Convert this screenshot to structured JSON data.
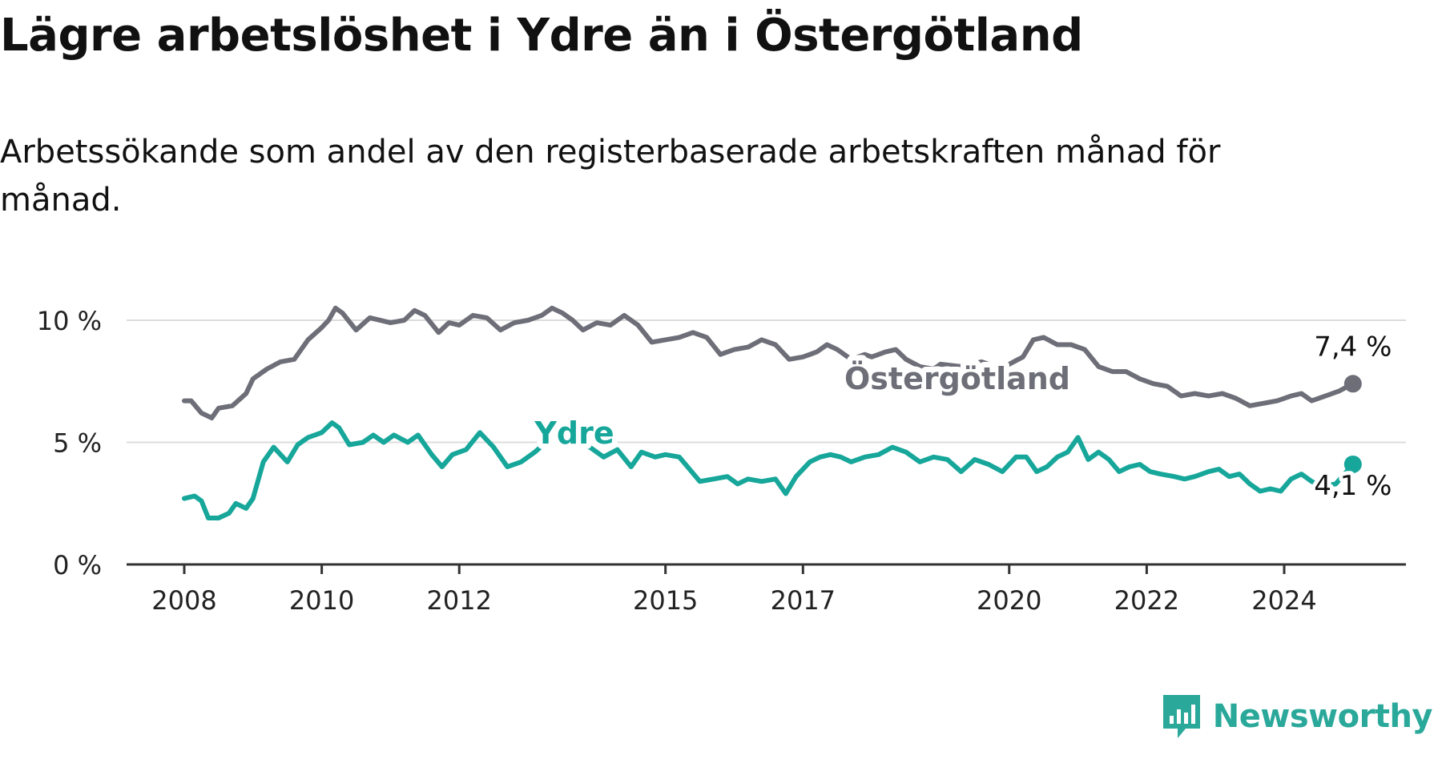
{
  "title": "Lägre arbetslöshet i Ydre än i Östergötland",
  "subtitle": "Arbetssökande som andel av den registerbaserade arbetskraften månad för månad.",
  "brand": {
    "name": "Newsworthy",
    "color": "#2aa89a"
  },
  "chart_data": {
    "type": "line",
    "x_start": "2008-01",
    "x_end": "2024-12",
    "ylim": [
      0,
      10
    ],
    "yticks": [
      {
        "value": 0,
        "label": "0 %"
      },
      {
        "value": 5,
        "label": "5 %"
      },
      {
        "value": 10,
        "label": "10 %"
      }
    ],
    "xticks": [
      {
        "value": 2008,
        "label": "2008"
      },
      {
        "value": 2010,
        "label": "2010"
      },
      {
        "value": 2012,
        "label": "2012"
      },
      {
        "value": 2015,
        "label": "2015"
      },
      {
        "value": 2017,
        "label": "2017"
      },
      {
        "value": 2020,
        "label": "2020"
      },
      {
        "value": 2022,
        "label": "2022"
      },
      {
        "value": 2024,
        "label": "2024"
      }
    ],
    "grid": true,
    "series": [
      {
        "name": "Östergötland",
        "color": "#6e6e78",
        "end_label": "7,4 %",
        "anchors": [
          [
            2008.0,
            6.7
          ],
          [
            2008.1,
            6.7
          ],
          [
            2008.25,
            6.2
          ],
          [
            2008.4,
            6.0
          ],
          [
            2008.5,
            6.4
          ],
          [
            2008.7,
            6.5
          ],
          [
            2008.9,
            7.0
          ],
          [
            2009.0,
            7.6
          ],
          [
            2009.2,
            8.0
          ],
          [
            2009.4,
            8.3
          ],
          [
            2009.6,
            8.4
          ],
          [
            2009.8,
            9.2
          ],
          [
            2010.0,
            9.7
          ],
          [
            2010.1,
            10.0
          ],
          [
            2010.2,
            10.5
          ],
          [
            2010.3,
            10.3
          ],
          [
            2010.5,
            9.6
          ],
          [
            2010.7,
            10.1
          ],
          [
            2011.0,
            9.9
          ],
          [
            2011.2,
            10.0
          ],
          [
            2011.35,
            10.4
          ],
          [
            2011.5,
            10.2
          ],
          [
            2011.7,
            9.5
          ],
          [
            2011.85,
            9.9
          ],
          [
            2012.0,
            9.8
          ],
          [
            2012.2,
            10.2
          ],
          [
            2012.4,
            10.1
          ],
          [
            2012.6,
            9.6
          ],
          [
            2012.8,
            9.9
          ],
          [
            2013.0,
            10.0
          ],
          [
            2013.2,
            10.2
          ],
          [
            2013.35,
            10.5
          ],
          [
            2013.5,
            10.3
          ],
          [
            2013.65,
            10.0
          ],
          [
            2013.8,
            9.6
          ],
          [
            2014.0,
            9.9
          ],
          [
            2014.2,
            9.8
          ],
          [
            2014.4,
            10.2
          ],
          [
            2014.6,
            9.8
          ],
          [
            2014.8,
            9.1
          ],
          [
            2015.0,
            9.2
          ],
          [
            2015.2,
            9.3
          ],
          [
            2015.4,
            9.5
          ],
          [
            2015.6,
            9.3
          ],
          [
            2015.8,
            8.6
          ],
          [
            2016.0,
            8.8
          ],
          [
            2016.2,
            8.9
          ],
          [
            2016.4,
            9.2
          ],
          [
            2016.6,
            9.0
          ],
          [
            2016.8,
            8.4
          ],
          [
            2017.0,
            8.5
          ],
          [
            2017.2,
            8.7
          ],
          [
            2017.35,
            9.0
          ],
          [
            2017.5,
            8.8
          ],
          [
            2017.7,
            8.4
          ],
          [
            2017.9,
            8.6
          ],
          [
            2018.0,
            8.5
          ],
          [
            2018.2,
            8.7
          ],
          [
            2018.35,
            8.8
          ],
          [
            2018.5,
            8.4
          ],
          [
            2018.7,
            8.1
          ],
          [
            2018.9,
            8.0
          ],
          [
            2019.0,
            8.2
          ],
          [
            2019.3,
            8.1
          ],
          [
            2019.6,
            8.3
          ],
          [
            2019.9,
            8.0
          ],
          [
            2020.0,
            8.2
          ],
          [
            2020.2,
            8.5
          ],
          [
            2020.35,
            9.2
          ],
          [
            2020.5,
            9.3
          ],
          [
            2020.7,
            9.0
          ],
          [
            2020.9,
            9.0
          ],
          [
            2021.1,
            8.8
          ],
          [
            2021.3,
            8.1
          ],
          [
            2021.5,
            7.9
          ],
          [
            2021.7,
            7.9
          ],
          [
            2021.9,
            7.6
          ],
          [
            2022.1,
            7.4
          ],
          [
            2022.3,
            7.3
          ],
          [
            2022.5,
            6.9
          ],
          [
            2022.7,
            7.0
          ],
          [
            2022.9,
            6.9
          ],
          [
            2023.1,
            7.0
          ],
          [
            2023.3,
            6.8
          ],
          [
            2023.5,
            6.5
          ],
          [
            2023.7,
            6.6
          ],
          [
            2023.9,
            6.7
          ],
          [
            2024.1,
            6.9
          ],
          [
            2024.25,
            7.0
          ],
          [
            2024.4,
            6.7
          ],
          [
            2024.6,
            6.9
          ],
          [
            2024.8,
            7.1
          ],
          [
            2025.0,
            7.4
          ]
        ]
      },
      {
        "name": "Ydre",
        "color": "#16a69a",
        "end_label": "4,1 %",
        "anchors": [
          [
            2008.0,
            2.7
          ],
          [
            2008.15,
            2.8
          ],
          [
            2008.25,
            2.6
          ],
          [
            2008.35,
            1.9
          ],
          [
            2008.5,
            1.9
          ],
          [
            2008.65,
            2.1
          ],
          [
            2008.75,
            2.5
          ],
          [
            2008.9,
            2.3
          ],
          [
            2009.0,
            2.7
          ],
          [
            2009.15,
            4.2
          ],
          [
            2009.3,
            4.8
          ],
          [
            2009.5,
            4.2
          ],
          [
            2009.65,
            4.9
          ],
          [
            2009.8,
            5.2
          ],
          [
            2010.0,
            5.4
          ],
          [
            2010.15,
            5.8
          ],
          [
            2010.25,
            5.6
          ],
          [
            2010.4,
            4.9
          ],
          [
            2010.6,
            5.0
          ],
          [
            2010.75,
            5.3
          ],
          [
            2010.9,
            5.0
          ],
          [
            2011.05,
            5.3
          ],
          [
            2011.25,
            5.0
          ],
          [
            2011.4,
            5.3
          ],
          [
            2011.6,
            4.5
          ],
          [
            2011.75,
            4.0
          ],
          [
            2011.9,
            4.5
          ],
          [
            2012.1,
            4.7
          ],
          [
            2012.3,
            5.4
          ],
          [
            2012.5,
            4.8
          ],
          [
            2012.7,
            4.0
          ],
          [
            2012.9,
            4.2
          ],
          [
            2013.1,
            4.6
          ],
          [
            2013.3,
            5.1
          ],
          [
            2013.5,
            5.0
          ],
          [
            2013.7,
            4.9
          ],
          [
            2013.9,
            4.8
          ],
          [
            2014.1,
            4.4
          ],
          [
            2014.3,
            4.7
          ],
          [
            2014.5,
            4.0
          ],
          [
            2014.65,
            4.6
          ],
          [
            2014.85,
            4.4
          ],
          [
            2015.0,
            4.5
          ],
          [
            2015.2,
            4.4
          ],
          [
            2015.35,
            3.9
          ],
          [
            2015.5,
            3.4
          ],
          [
            2015.7,
            3.5
          ],
          [
            2015.9,
            3.6
          ],
          [
            2016.05,
            3.3
          ],
          [
            2016.2,
            3.5
          ],
          [
            2016.4,
            3.4
          ],
          [
            2016.6,
            3.5
          ],
          [
            2016.75,
            2.9
          ],
          [
            2016.9,
            3.6
          ],
          [
            2017.1,
            4.2
          ],
          [
            2017.25,
            4.4
          ],
          [
            2017.4,
            4.5
          ],
          [
            2017.55,
            4.4
          ],
          [
            2017.7,
            4.2
          ],
          [
            2017.9,
            4.4
          ],
          [
            2018.1,
            4.5
          ],
          [
            2018.3,
            4.8
          ],
          [
            2018.5,
            4.6
          ],
          [
            2018.7,
            4.2
          ],
          [
            2018.9,
            4.4
          ],
          [
            2019.1,
            4.3
          ],
          [
            2019.3,
            3.8
          ],
          [
            2019.5,
            4.3
          ],
          [
            2019.7,
            4.1
          ],
          [
            2019.9,
            3.8
          ],
          [
            2020.1,
            4.4
          ],
          [
            2020.25,
            4.4
          ],
          [
            2020.4,
            3.8
          ],
          [
            2020.55,
            4.0
          ],
          [
            2020.7,
            4.4
          ],
          [
            2020.85,
            4.6
          ],
          [
            2021.0,
            5.2
          ],
          [
            2021.15,
            4.3
          ],
          [
            2021.3,
            4.6
          ],
          [
            2021.45,
            4.3
          ],
          [
            2021.6,
            3.8
          ],
          [
            2021.75,
            4.0
          ],
          [
            2021.9,
            4.1
          ],
          [
            2022.05,
            3.8
          ],
          [
            2022.2,
            3.7
          ],
          [
            2022.4,
            3.6
          ],
          [
            2022.55,
            3.5
          ],
          [
            2022.7,
            3.6
          ],
          [
            2022.9,
            3.8
          ],
          [
            2023.05,
            3.9
          ],
          [
            2023.2,
            3.6
          ],
          [
            2023.35,
            3.7
          ],
          [
            2023.5,
            3.3
          ],
          [
            2023.65,
            3.0
          ],
          [
            2023.8,
            3.1
          ],
          [
            2023.95,
            3.0
          ],
          [
            2024.1,
            3.5
          ],
          [
            2024.25,
            3.7
          ],
          [
            2024.4,
            3.4
          ],
          [
            2024.55,
            3.2
          ],
          [
            2024.75,
            3.3
          ],
          [
            2025.0,
            4.1
          ]
        ]
      }
    ]
  }
}
